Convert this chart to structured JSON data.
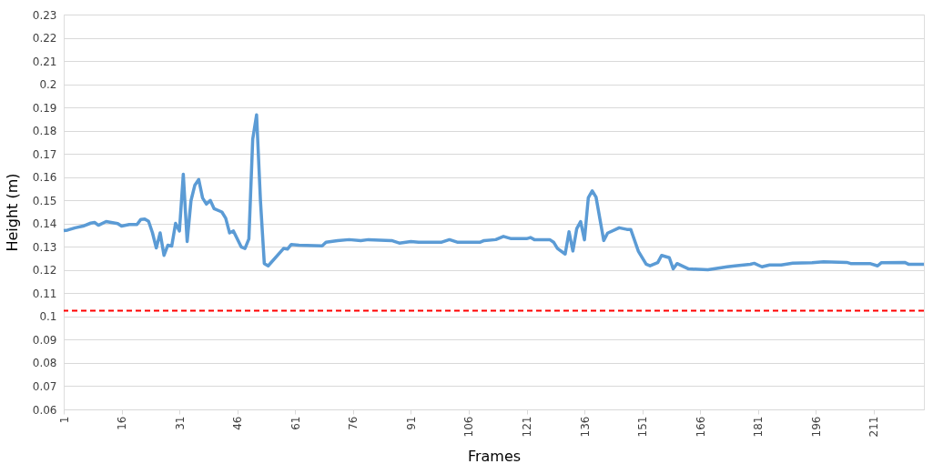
{
  "chart_data": {
    "type": "line",
    "xlabel": "Frames",
    "ylabel": "Height (m)",
    "x": [
      1,
      2,
      4,
      6,
      8,
      9,
      10,
      12,
      15,
      16,
      18,
      20,
      21,
      22,
      23,
      24,
      25,
      26,
      27,
      28,
      29,
      30,
      31,
      32,
      33,
      34,
      35,
      36,
      37,
      38,
      39,
      40,
      42,
      43,
      44,
      45,
      47,
      48,
      49,
      50,
      51,
      52,
      53,
      54,
      58,
      59,
      60,
      62,
      68,
      69,
      72,
      75,
      78,
      80,
      86,
      88,
      91,
      93,
      99,
      101,
      103,
      109,
      110,
      113,
      115,
      117,
      121,
      122,
      123,
      127,
      128,
      129,
      131,
      132,
      133,
      134,
      135,
      136,
      137,
      138,
      139,
      141,
      142,
      145,
      147,
      148,
      150,
      152,
      153,
      155,
      156,
      158,
      159,
      160,
      163,
      168,
      173,
      175,
      179,
      180,
      182,
      184,
      187,
      190,
      195,
      198,
      204,
      205,
      210,
      212,
      213,
      219,
      220,
      224
    ],
    "series": [
      {
        "color": "#5b9bd5",
        "values": [
          0.137,
          0.1372,
          0.1382,
          0.1389,
          0.1402,
          0.1405,
          0.1393,
          0.1409,
          0.14,
          0.1389,
          0.1396,
          0.1396,
          0.1418,
          0.142,
          0.141,
          0.1361,
          0.1295,
          0.136,
          0.1263,
          0.1307,
          0.1303,
          0.1401,
          0.1368,
          0.1613,
          0.1323,
          0.1499,
          0.1566,
          0.159,
          0.151,
          0.1484,
          0.15,
          0.1464,
          0.145,
          0.1423,
          0.136,
          0.1368,
          0.13,
          0.1293,
          0.1334,
          0.1763,
          0.1868,
          0.15,
          0.1228,
          0.1218,
          0.1293,
          0.129,
          0.131,
          0.1307,
          0.1304,
          0.132,
          0.1327,
          0.1331,
          0.1327,
          0.1331,
          0.1327,
          0.1316,
          0.1323,
          0.132,
          0.132,
          0.1331,
          0.132,
          0.132,
          0.1327,
          0.1331,
          0.1345,
          0.1335,
          0.1335,
          0.134,
          0.1331,
          0.1331,
          0.132,
          0.1293,
          0.1269,
          0.1365,
          0.1282,
          0.1378,
          0.1409,
          0.133,
          0.1511,
          0.1541,
          0.1514,
          0.1327,
          0.1359,
          0.1382,
          0.1375,
          0.1375,
          0.128,
          0.1225,
          0.1218,
          0.1232,
          0.1263,
          0.1253,
          0.1205,
          0.1228,
          0.1205,
          0.1201,
          0.1214,
          0.1218,
          0.1225,
          0.1229,
          0.1214,
          0.1222,
          0.1222,
          0.123,
          0.1232,
          0.1236,
          0.1233,
          0.1228,
          0.1228,
          0.1218,
          0.1232,
          0.1233,
          0.1225,
          0.1225
        ]
      }
    ],
    "xlim": [
      1,
      224
    ],
    "xticks": [
      1,
      16,
      31,
      46,
      61,
      76,
      91,
      106,
      121,
      136,
      151,
      166,
      181,
      196,
      211
    ],
    "ylim": [
      0.06,
      0.23
    ],
    "yticks": [
      0.06,
      0.07,
      0.08,
      0.09,
      0.1,
      0.11,
      0.12,
      0.13,
      0.14,
      0.15,
      0.16,
      0.17,
      0.18,
      0.19,
      0.2,
      0.21,
      0.22,
      0.23
    ],
    "grid": "y",
    "line_style": "solid",
    "marker": "none",
    "ref_lines": [
      {
        "axis": "y",
        "value": 0.1025,
        "color": "#ff0000",
        "line_style": "dashed"
      }
    ]
  }
}
